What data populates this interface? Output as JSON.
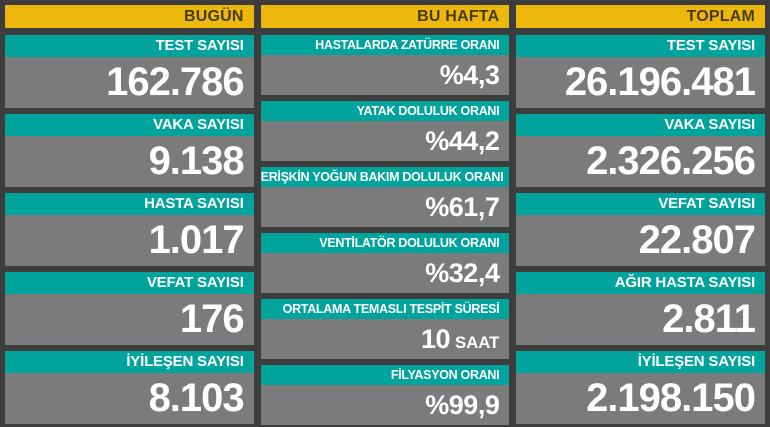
{
  "theme": {
    "background": "#3d3d3d",
    "header_bg": "#ecb80e",
    "header_text": "#4a3c10",
    "label_bg": "#00a49c",
    "label_text": "#ffffff",
    "value_bg": "#7b7b7b",
    "value_text": "#ffffff"
  },
  "chart_data": {
    "type": "table",
    "layout": "three-column statistics board, right-aligned text, no grid",
    "groups": [
      {
        "header": "BUGÜN",
        "rows": [
          {
            "label": "TEST SAYISI",
            "value": "162.786",
            "suffix": ""
          },
          {
            "label": "VAKA SAYISI",
            "value": "9.138",
            "suffix": ""
          },
          {
            "label": "HASTA SAYISI",
            "value": "1.017",
            "suffix": ""
          },
          {
            "label": "VEFAT SAYISI",
            "value": "176",
            "suffix": ""
          },
          {
            "label": "İYİLEŞEN SAYISI",
            "value": "8.103",
            "suffix": ""
          }
        ]
      },
      {
        "header": "BU HAFTA",
        "rows": [
          {
            "label": "HASTALARDA ZATÜRRE ORANI",
            "value": "%4,3",
            "suffix": ""
          },
          {
            "label": "YATAK DOLULUK ORANI",
            "value": "%44,2",
            "suffix": ""
          },
          {
            "label": "ERİŞKİN YOĞUN BAKIM DOLULUK ORANI",
            "value": "%61,7",
            "suffix": ""
          },
          {
            "label": "VENTİLATÖR DOLULUK ORANI",
            "value": "%32,4",
            "suffix": ""
          },
          {
            "label": "ORTALAMA TEMASLI TESPİT SÜRESİ",
            "value": "10",
            "suffix": "SAAT"
          },
          {
            "label": "FİLYASYON ORANI",
            "value": "%99,9",
            "suffix": ""
          }
        ]
      },
      {
        "header": "TOPLAM",
        "rows": [
          {
            "label": "TEST SAYISI",
            "value": "26.196.481",
            "suffix": ""
          },
          {
            "label": "VAKA SAYISI",
            "value": "2.326.256",
            "suffix": ""
          },
          {
            "label": "VEFAT SAYISI",
            "value": "22.807",
            "suffix": ""
          },
          {
            "label": "AĞIR HASTA SAYISI",
            "value": "2.811",
            "suffix": ""
          },
          {
            "label": "İYİLEŞEN SAYISI",
            "value": "2.198.150",
            "suffix": ""
          }
        ]
      }
    ]
  }
}
